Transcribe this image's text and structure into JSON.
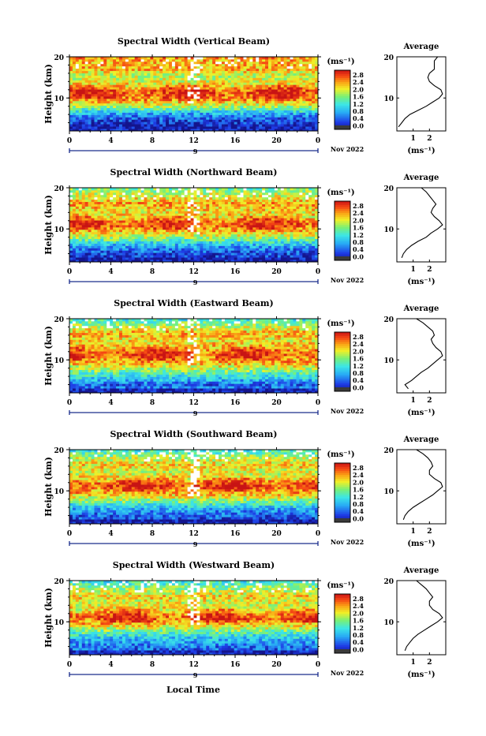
{
  "xlabel": "Local Time",
  "date_label": "Nov 2022",
  "day_marker": "9",
  "cbar_units": "(ms⁻¹)",
  "avg_title": "Average",
  "avg_xlabel": "(ms⁻¹)",
  "chart_data": [
    {
      "type": "heatmap",
      "title": "Spectral Width (Vertical Beam)",
      "ylabel": "Height (km)",
      "xlabel": "Local Time",
      "x_ticks": [
        "0",
        "4",
        "8",
        "12",
        "16",
        "20",
        "0"
      ],
      "y_ticks": [
        "10",
        "20"
      ],
      "xlim": [
        0,
        24
      ],
      "ylim": [
        2,
        20
      ],
      "colorbar": {
        "label": "(ms⁻¹)",
        "ticks": [
          "2.8",
          "2.4",
          "2.0",
          "1.6",
          "1.2",
          "0.8",
          "0.4",
          "0.0"
        ],
        "range": [
          0,
          3.0
        ]
      },
      "average_profile": {
        "title": "Average",
        "xlabel": "(ms⁻¹)",
        "x_ticks": [
          "1",
          "2"
        ],
        "y_ticks": [
          "10",
          "20"
        ],
        "heights": [
          3,
          4,
          5,
          6,
          7,
          8,
          9,
          10,
          11,
          12,
          13,
          14,
          15,
          16,
          17,
          18,
          19,
          20
        ],
        "values": [
          0.1,
          0.3,
          0.5,
          0.8,
          1.3,
          1.8,
          2.2,
          2.6,
          2.8,
          2.7,
          2.3,
          2.0,
          1.9,
          2.0,
          2.3,
          2.3,
          2.3,
          2.5
        ]
      }
    },
    {
      "type": "heatmap",
      "title": "Spectral Width (Northward Beam)",
      "ylabel": "Height (km)",
      "xlabel": "Local Time",
      "x_ticks": [
        "0",
        "4",
        "8",
        "12",
        "16",
        "20",
        "0"
      ],
      "y_ticks": [
        "10",
        "20"
      ],
      "xlim": [
        0,
        24
      ],
      "ylim": [
        2,
        20
      ],
      "colorbar": {
        "label": "(ms⁻¹)",
        "ticks": [
          "2.8",
          "2.4",
          "2.0",
          "1.6",
          "1.2",
          "0.8",
          "0.4",
          "0.0"
        ],
        "range": [
          0,
          3.0
        ]
      },
      "average_profile": {
        "title": "Average",
        "xlabel": "(ms⁻¹)",
        "x_ticks": [
          "1",
          "2"
        ],
        "y_ticks": [
          "10",
          "20"
        ],
        "heights": [
          3,
          4,
          5,
          6,
          7,
          8,
          9,
          10,
          11,
          12,
          13,
          14,
          15,
          16,
          17,
          18,
          19,
          20
        ],
        "values": [
          0.3,
          0.4,
          0.6,
          0.9,
          1.3,
          1.8,
          2.1,
          2.5,
          2.8,
          2.6,
          2.3,
          2.1,
          2.2,
          2.4,
          2.2,
          2.0,
          1.8,
          1.5
        ]
      }
    },
    {
      "type": "heatmap",
      "title": "Spectral Width (Eastward Beam)",
      "ylabel": "Height (km)",
      "xlabel": "Local Time",
      "x_ticks": [
        "0",
        "4",
        "8",
        "12",
        "16",
        "20",
        "0"
      ],
      "y_ticks": [
        "10",
        "20"
      ],
      "xlim": [
        0,
        24
      ],
      "ylim": [
        2,
        20
      ],
      "colorbar": {
        "label": "(ms⁻¹)",
        "ticks": [
          "2.8",
          "2.4",
          "2.0",
          "1.6",
          "1.2",
          "0.8",
          "0.4",
          "0.0"
        ],
        "range": [
          0,
          3.0
        ]
      },
      "average_profile": {
        "title": "Average",
        "xlabel": "(ms⁻¹)",
        "x_ticks": [
          "1",
          "2"
        ],
        "y_ticks": [
          "10",
          "20"
        ],
        "heights": [
          3,
          4,
          5,
          6,
          7,
          8,
          9,
          10,
          11,
          12,
          13,
          14,
          15,
          16,
          17,
          18,
          19,
          20
        ],
        "values": [
          0.7,
          0.5,
          0.9,
          1.2,
          1.5,
          1.9,
          2.2,
          2.5,
          2.8,
          2.7,
          2.4,
          2.2,
          2.1,
          2.3,
          2.2,
          1.9,
          1.6,
          1.2
        ]
      }
    },
    {
      "type": "heatmap",
      "title": "Spectral Width (Southward Beam)",
      "ylabel": "Height (km)",
      "xlabel": "Local Time",
      "x_ticks": [
        "0",
        "4",
        "8",
        "12",
        "16",
        "20",
        "0"
      ],
      "y_ticks": [
        "10",
        "20"
      ],
      "xlim": [
        0,
        24
      ],
      "ylim": [
        2,
        20
      ],
      "colorbar": {
        "label": "(ms⁻¹)",
        "ticks": [
          "2.8",
          "2.4",
          "2.0",
          "1.6",
          "1.2",
          "0.8",
          "0.4",
          "0.0"
        ],
        "range": [
          0,
          3.0
        ]
      },
      "average_profile": {
        "title": "Average",
        "xlabel": "(ms⁻¹)",
        "x_ticks": [
          "1",
          "2"
        ],
        "y_ticks": [
          "10",
          "20"
        ],
        "heights": [
          3,
          4,
          5,
          6,
          7,
          8,
          9,
          10,
          11,
          12,
          13,
          14,
          15,
          16,
          17,
          18,
          19,
          20
        ],
        "values": [
          0.4,
          0.5,
          0.7,
          1.0,
          1.4,
          1.8,
          2.2,
          2.5,
          2.8,
          2.7,
          2.3,
          2.0,
          2.0,
          2.2,
          2.1,
          1.9,
          1.6,
          1.2
        ]
      }
    },
    {
      "type": "heatmap",
      "title": "Spectral Width (Westward Beam)",
      "ylabel": "Height (km)",
      "xlabel": "Local Time",
      "x_ticks": [
        "0",
        "4",
        "8",
        "12",
        "16",
        "20",
        "0"
      ],
      "y_ticks": [
        "10",
        "20"
      ],
      "xlim": [
        0,
        24
      ],
      "ylim": [
        2,
        20
      ],
      "colorbar": {
        "label": "(ms⁻¹)",
        "ticks": [
          "2.8",
          "2.4",
          "2.0",
          "1.6",
          "1.2",
          "0.8",
          "0.4",
          "0.0"
        ],
        "range": [
          0,
          3.0
        ]
      },
      "average_profile": {
        "title": "Average",
        "xlabel": "(ms⁻¹)",
        "x_ticks": [
          "1",
          "2"
        ],
        "y_ticks": [
          "10",
          "20"
        ],
        "heights": [
          3,
          4,
          5,
          6,
          7,
          8,
          9,
          10,
          11,
          12,
          13,
          14,
          15,
          16,
          17,
          18,
          19,
          20
        ],
        "values": [
          0.5,
          0.6,
          0.8,
          1.0,
          1.3,
          1.7,
          2.1,
          2.5,
          2.8,
          2.6,
          2.2,
          2.0,
          2.0,
          2.2,
          2.0,
          1.8,
          1.5,
          1.2
        ]
      }
    }
  ]
}
